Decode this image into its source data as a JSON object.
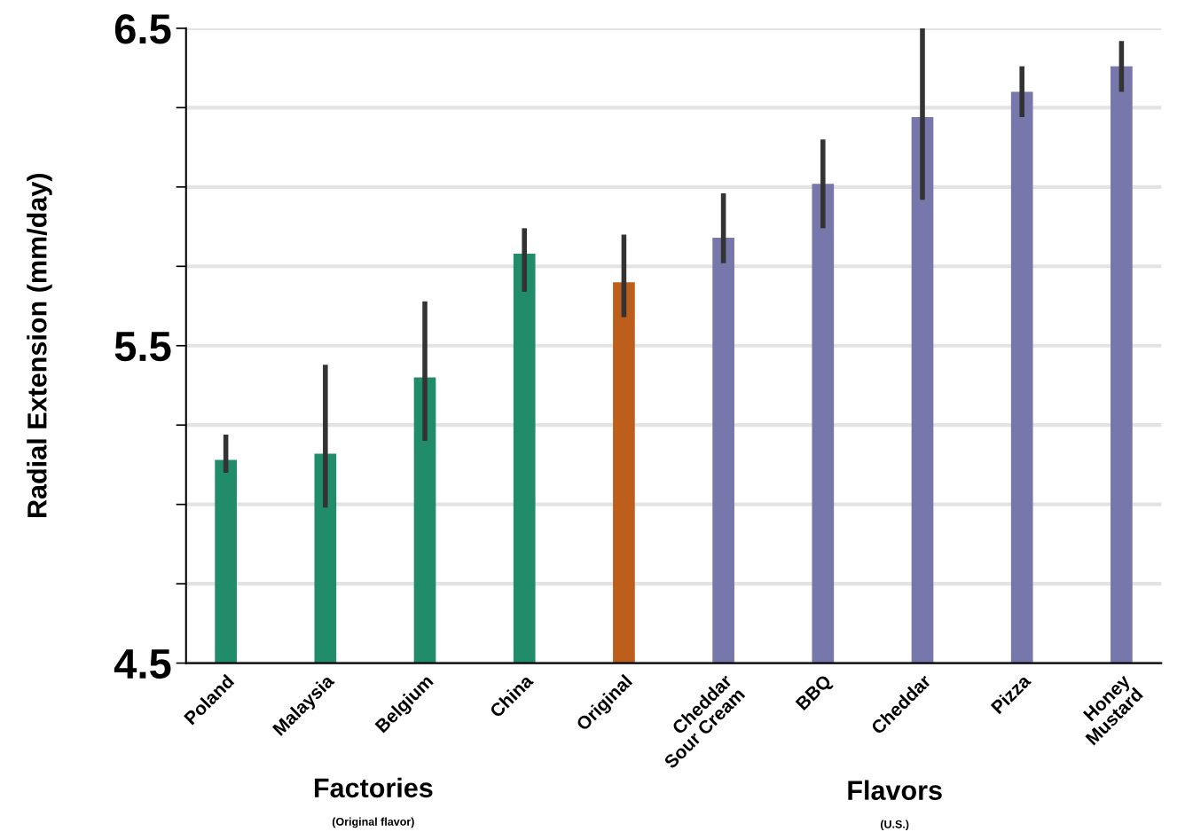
{
  "chart_data": {
    "type": "bar",
    "ylabel": "Radial Extension (mm/day)",
    "categories": [
      "Poland",
      "Malaysia",
      "Belgium",
      "China",
      "Original",
      "Cheddar\nSour Cream",
      "BBQ",
      "Cheddar",
      "Pizza",
      "Honey\nMustard"
    ],
    "values": [
      5.14,
      5.16,
      5.4,
      5.79,
      5.7,
      5.84,
      6.01,
      6.22,
      6.3,
      6.38
    ],
    "errors": [
      [
        5.1,
        5.22
      ],
      [
        4.99,
        5.44
      ],
      [
        5.2,
        5.64
      ],
      [
        5.67,
        5.87
      ],
      [
        5.59,
        5.85
      ],
      [
        5.76,
        5.98
      ],
      [
        5.87,
        6.15
      ],
      [
        5.96,
        6.5
      ],
      [
        6.22,
        6.38
      ],
      [
        6.3,
        6.46
      ]
    ],
    "colors": [
      "#218c6a",
      "#218c6a",
      "#218c6a",
      "#218c6a",
      "#bd5e1c",
      "#7777ab",
      "#7777ab",
      "#7777ab",
      "#7777ab",
      "#7777ab"
    ],
    "ylim": [
      4.5,
      6.5
    ],
    "yticks": [
      4.5,
      {
        "value": 4.75,
        "label": null
      },
      {
        "value": 5.0,
        "label": null
      },
      {
        "value": 5.25,
        "label": null
      },
      5.5,
      {
        "value": 5.75,
        "label": null
      },
      {
        "value": 6.0,
        "label": null
      },
      {
        "value": 6.25,
        "label": null
      },
      6.5
    ],
    "grid": "y",
    "annotations": [
      "Factories",
      "(Original flavor)",
      "Flavors",
      "(U.S.)"
    ]
  }
}
